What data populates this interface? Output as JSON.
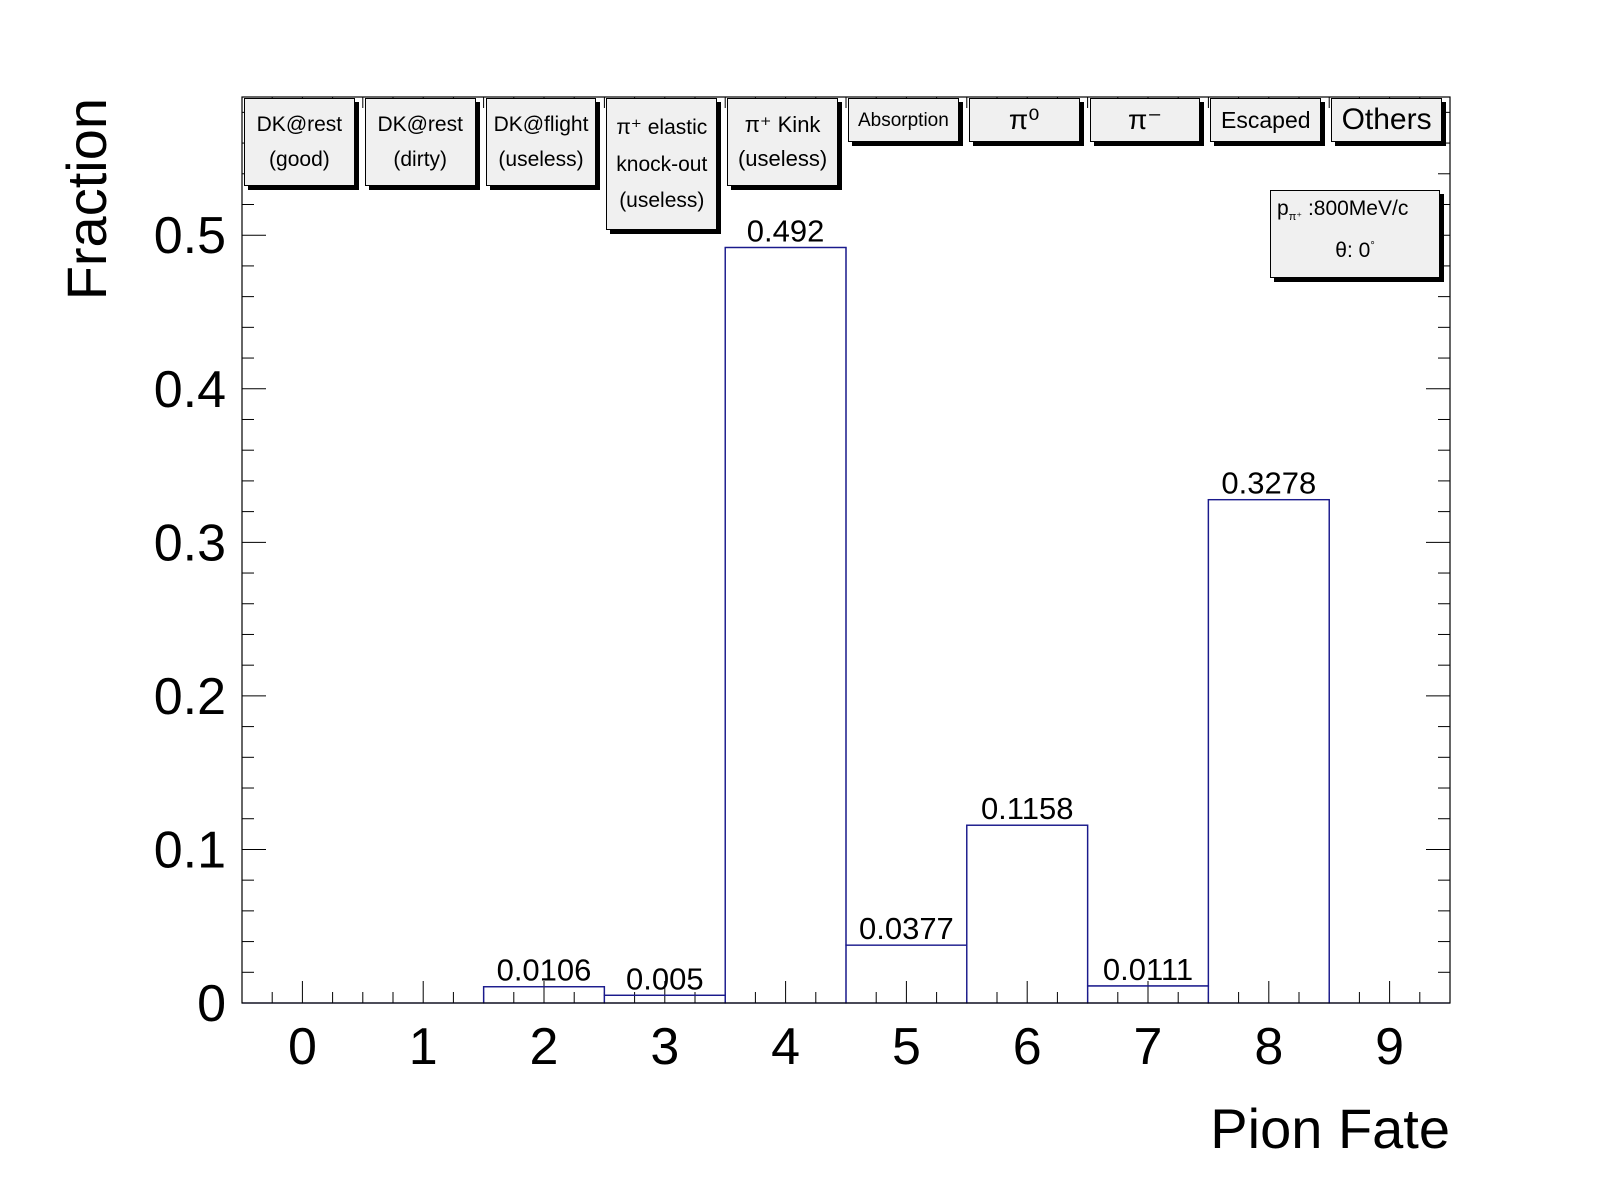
{
  "chart_data": {
    "type": "bar",
    "style": "histogram",
    "categories": [
      "0",
      "1",
      "2",
      "3",
      "4",
      "5",
      "6",
      "7",
      "8",
      "9"
    ],
    "values": [
      0,
      0,
      0.0106,
      0.005,
      0.492,
      0.0377,
      0.1158,
      0.0111,
      0.3278,
      0
    ],
    "value_labels": [
      "",
      "",
      "0.0106",
      "0.005",
      "0.492",
      "0.0377",
      "0.1158",
      "0.0111",
      "0.3278",
      ""
    ],
    "xlabel": "Pion Fate",
    "ylabel": "Fraction",
    "xlim": [
      -0.5,
      9.5
    ],
    "ylim": [
      0,
      0.59
    ],
    "yticks": [
      "0",
      "0.1",
      "0.2",
      "0.3",
      "0.4",
      "0.5"
    ],
    "ytick_values": [
      0,
      0.1,
      0.2,
      0.3,
      0.4,
      0.5
    ],
    "grid": false,
    "line_color": "#1a1a8c",
    "category_labels": [
      {
        "lines": [
          "DK@rest",
          "(good)"
        ]
      },
      {
        "lines": [
          "DK@rest",
          "(dirty)"
        ]
      },
      {
        "lines": [
          "DK@flight",
          "(useless)"
        ]
      },
      {
        "lines": [
          "π⁺ elastic",
          "knock-out",
          "(useless)"
        ]
      },
      {
        "lines": [
          "π⁺ Kink",
          "(useless)"
        ]
      },
      {
        "lines": [
          "Absorption"
        ]
      },
      {
        "lines": [
          "π⁰"
        ]
      },
      {
        "lines": [
          "π⁻"
        ]
      },
      {
        "lines": [
          "Escaped"
        ]
      },
      {
        "lines": [
          "Others"
        ]
      }
    ],
    "annotation": {
      "momentum_symbol": "p",
      "momentum_subscript": "π⁺",
      "momentum_value": ":800MeV/c",
      "angle_symbol": "θ: 0",
      "angle_unit": "°"
    }
  }
}
